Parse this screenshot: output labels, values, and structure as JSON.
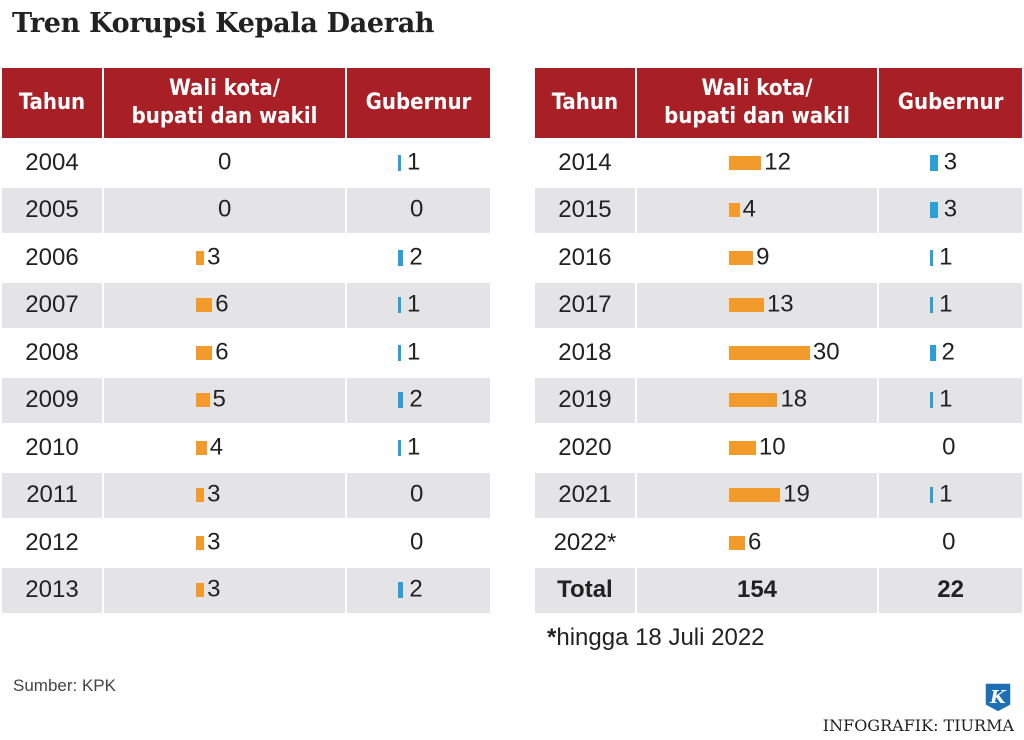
{
  "title": "Tren Korupsi Kepala Daerah",
  "headers": {
    "year": "Tahun",
    "mayor_line1": "Wali kota/",
    "mayor_line2": "bupati dan wakil",
    "governor": "Gubernur"
  },
  "colors": {
    "header_bg": "#a81f26",
    "mayor_bar": "#f39a2c",
    "governor_bar": "#2b9fd8",
    "row_alt": "#e4e4e6"
  },
  "chart_data": {
    "type": "table",
    "title": "Tren Korupsi Kepala Daerah",
    "columns": [
      "Tahun",
      "Wali kota/ bupati dan wakil",
      "Gubernur"
    ],
    "rows": [
      {
        "year": "2004",
        "mayor": 0,
        "governor": 1
      },
      {
        "year": "2005",
        "mayor": 0,
        "governor": 0
      },
      {
        "year": "2006",
        "mayor": 3,
        "governor": 2
      },
      {
        "year": "2007",
        "mayor": 6,
        "governor": 1
      },
      {
        "year": "2008",
        "mayor": 6,
        "governor": 1
      },
      {
        "year": "2009",
        "mayor": 5,
        "governor": 2
      },
      {
        "year": "2010",
        "mayor": 4,
        "governor": 1
      },
      {
        "year": "2011",
        "mayor": 3,
        "governor": 0
      },
      {
        "year": "2012",
        "mayor": 3,
        "governor": 0
      },
      {
        "year": "2013",
        "mayor": 3,
        "governor": 2
      },
      {
        "year": "2014",
        "mayor": 12,
        "governor": 3
      },
      {
        "year": "2015",
        "mayor": 4,
        "governor": 3
      },
      {
        "year": "2016",
        "mayor": 9,
        "governor": 1
      },
      {
        "year": "2017",
        "mayor": 13,
        "governor": 1
      },
      {
        "year": "2018",
        "mayor": 30,
        "governor": 2
      },
      {
        "year": "2019",
        "mayor": 18,
        "governor": 1
      },
      {
        "year": "2020",
        "mayor": 10,
        "governor": 0
      },
      {
        "year": "2021",
        "mayor": 19,
        "governor": 1
      },
      {
        "year": "2022*",
        "mayor": 6,
        "governor": 0
      }
    ],
    "total": {
      "label": "Total",
      "mayor": "154",
      "governor": "22"
    }
  },
  "footnote": {
    "marker": "*",
    "text": "hingga 18 Juli 2022"
  },
  "source": "Sumber: KPK",
  "logo_letter": "K",
  "credit": "INFOGRAFIK: TIURMA"
}
